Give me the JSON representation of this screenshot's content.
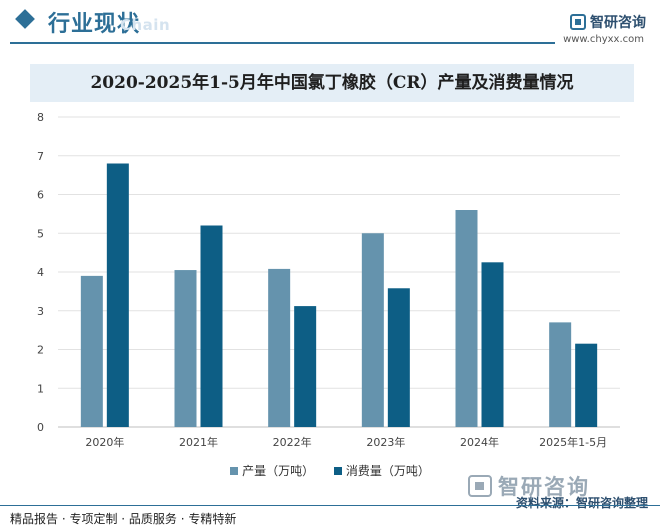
{
  "header": {
    "section_title": "行业现状",
    "section_subtitle": "Chain",
    "brand_name": "智研咨询",
    "brand_url": "www.chyxx.com"
  },
  "colors": {
    "production": "#6593ad",
    "consumption": "#0d5e85",
    "accent": "#2d6f97"
  },
  "chart_data": {
    "type": "bar",
    "title": "2020-2025年1-5月年中国氯丁橡胶（CR）产量及消费量情况",
    "xlabel": "",
    "ylabel": "",
    "categories": [
      "2020年",
      "2021年",
      "2022年",
      "2023年",
      "2024年",
      "2025年1-5月"
    ],
    "series": [
      {
        "name": "产量（万吨）",
        "values": [
          3.9,
          4.05,
          4.08,
          5.0,
          5.6,
          2.7
        ]
      },
      {
        "name": "消费量（万吨）",
        "values": [
          6.8,
          5.2,
          3.12,
          3.58,
          4.25,
          2.15
        ]
      }
    ],
    "ylim": [
      0,
      8
    ],
    "yticks": [
      0,
      1,
      2,
      3,
      4,
      5,
      6,
      7,
      8
    ],
    "grid": true,
    "legend_position": "bottom"
  },
  "footer": {
    "tags": "精品报告 · 专项定制 · 品质服务 · 专精特新",
    "source": "资料来源：智研咨询整理",
    "logo_text": "智研咨询"
  }
}
